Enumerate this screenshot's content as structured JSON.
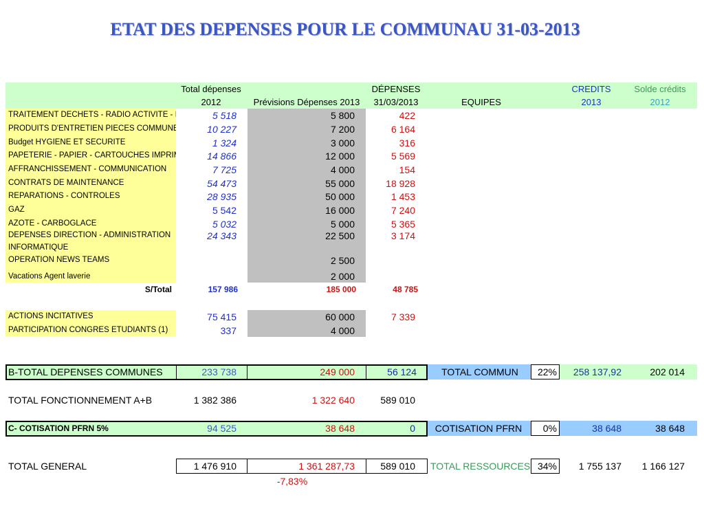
{
  "title": "ETAT DES DEPENSES POUR LE COMMUNAU 31-03-2013",
  "headers": {
    "total_depenses_l1": "Total dépenses",
    "total_depenses_l2": "2012",
    "previsions": "Prévisions Dépenses 2013",
    "depenses_l1": "DÉPENSES",
    "depenses_l2": "31/03/2013",
    "equipes": "EQUIPES",
    "credits_l1": "CREDITS",
    "credits_l2": "2013",
    "solde_l1": "Solde crédits",
    "solde_l2": "2012"
  },
  "rows": [
    {
      "label": "TRAITEMENT DECHETS - RADIO ACTIVITE - ISOTOPES",
      "total2012": "5  518",
      "prev2013": "5  800",
      "dep": "422"
    },
    {
      "label": "PRODUITS D'ENTRETIEN PIECES COMMUNES",
      "total2012": "10  227",
      "prev2013": "7  200",
      "dep": "6  164"
    },
    {
      "label": "Budget HYGIENE ET SECURITE",
      "total2012": "1  324",
      "prev2013": "3  000",
      "dep": "316"
    },
    {
      "label": "PAPETERIE - PAPIER - CARTOUCHES IMPRIMANTES",
      "total2012": "14  866",
      "prev2013": "12  000",
      "dep": "5  569"
    },
    {
      "label": "AFFRANCHISSEMENT - COMMUNICATION",
      "total2012": "7  725",
      "prev2013": "4  000",
      "dep": "154"
    },
    {
      "label": "CONTRATS  DE MAINTENANCE",
      "total2012": "54  473",
      "prev2013": "55  000",
      "dep": "18  928"
    },
    {
      "label": "REPARATIONS  - CONTRÔLES",
      "total2012": "28  935",
      "prev2013": "50  000",
      "dep": "1  453"
    },
    {
      "label": "GAZ",
      "total2012": "5  542",
      "prev2013": "16  000",
      "dep": "7  240"
    },
    {
      "label": "AZOTE - CARBOGLACE",
      "total2012": "5  032",
      "prev2013": "5  000",
      "dep": "5  365"
    },
    {
      "label": "DEPENSES DIRECTION - ADMINISTRATION",
      "total2012": "24  343",
      "prev2013": "22  500",
      "dep": "3  174"
    },
    {
      "label": "INFORMATIQUE",
      "total2012": "",
      "prev2013": "",
      "dep": ""
    },
    {
      "label": "OPERATION NEWS TEAMS",
      "total2012": "",
      "prev2013": "2  500",
      "dep": ""
    },
    {
      "label": "Vacations Agent laverie",
      "total2012": "",
      "prev2013": "2  000",
      "dep": ""
    }
  ],
  "subtotal": {
    "label": "S/Total",
    "total2012": "157 986",
    "prev2013": "185 000",
    "dep": "48 785"
  },
  "rows2": [
    {
      "label": "ACTIONS INCITATIVES",
      "total2012": "75  415",
      "prev2013": "60  000",
      "dep": "7  339"
    },
    {
      "label": "PARTICIPATION CONGRES ETUDIANTS (1)",
      "total2012": "337",
      "prev2013": "4  000",
      "dep": ""
    }
  ],
  "btotal": {
    "label": "B-TOTAL DEPENSES COMMUNES",
    "total2012": "233  738",
    "prev2013": "249  000",
    "dep": "56  124",
    "equipe": "TOTAL COMMUN",
    "pct": "22%",
    "credits": "258  137,92",
    "solde": "202  014"
  },
  "fonct": {
    "label": "TOTAL FONCTIONNEMENT A+B",
    "total2012": "1  382  386",
    "prev2013": "1  322  640",
    "dep": "589  010"
  },
  "cotis": {
    "label": "C- COTISATION PFRN 5%",
    "total2012": "94  525",
    "prev2013": "38  648",
    "dep": "0",
    "equipe": "COTISATION PFRN",
    "pct": "0%",
    "credits": "38  648",
    "solde": "38  648"
  },
  "general": {
    "label": "TOTAL GENERAL",
    "total2012": "1  476  910",
    "prev2013": "1  361  287,73",
    "dep": "589  010",
    "equipe": "TOTAL RESSOURCES",
    "pct": "34%",
    "credits": "1  755  137",
    "solde": "1  166  127",
    "variation": "-7,83%"
  },
  "colors": {
    "yellow": "#ffff99",
    "green": "#ccffcc",
    "gray": "#c0c0c0",
    "light_blue": "#99ccff"
  }
}
